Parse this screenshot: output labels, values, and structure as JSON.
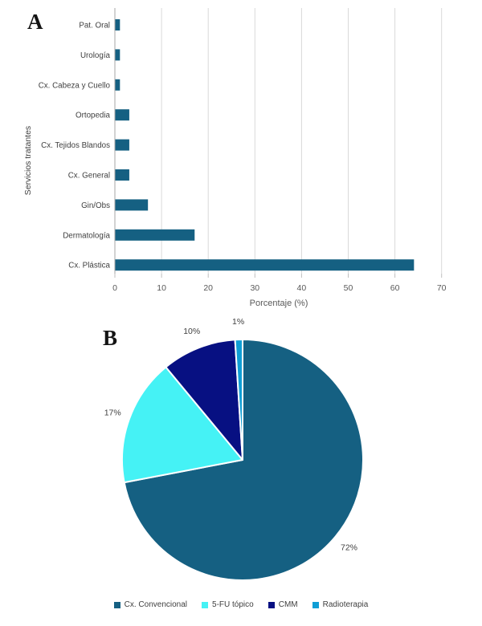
{
  "panels": {
    "a": "A",
    "b": "B"
  },
  "colors": {
    "bar": "#156082",
    "grid": "#D9D9D9",
    "axis_line": "#A6A6A6",
    "tick_mark": "#BFBFBF",
    "tick_text": "#595959",
    "label_text": "#404040",
    "slice_border": "#FFFFFF"
  },
  "chart_data": [
    {
      "type": "bar",
      "orientation": "horizontal",
      "title": "",
      "categories": [
        "Pat. Oral",
        "Urología",
        "Cx. Cabeza y Cuello",
        "Ortopedia",
        "Cx. Tejidos Blandos",
        "Cx. General",
        "Gin/Obs",
        "Dermatología",
        "Cx. Plástica"
      ],
      "values": [
        1,
        1,
        1,
        3,
        3,
        3,
        7,
        17,
        64
      ],
      "xlabel": "Porcentaje (%)",
      "ylabel": "Servicios tratantes",
      "xlim": [
        0,
        70
      ],
      "xticks": [
        0,
        10,
        20,
        30,
        40,
        50,
        60,
        70
      ],
      "grid": true,
      "bar_color": "#156082"
    },
    {
      "type": "pie",
      "labels": [
        "Cx. Convencional",
        "5-FU tópico",
        "CMM",
        "Radioterapia"
      ],
      "values": [
        72,
        17,
        10,
        1
      ],
      "display_labels": [
        "72%",
        "17%",
        "10%",
        "1%"
      ],
      "colors": [
        "#156082",
        "#45F2F5",
        "#071082",
        "#0F9ED5"
      ],
      "start_angle_deg": 0,
      "direction": "clockwise",
      "legend_position": "bottom"
    }
  ]
}
